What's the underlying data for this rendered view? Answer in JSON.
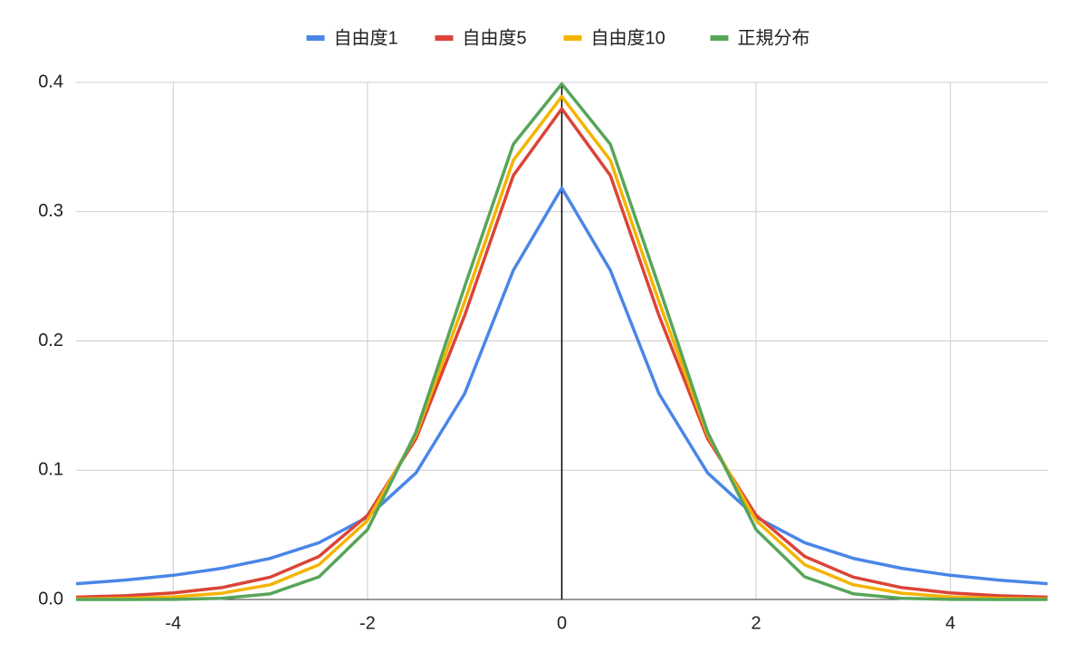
{
  "chart_data": {
    "type": "line",
    "x": [
      -5,
      -4.5,
      -4,
      -3.5,
      -3,
      -2.5,
      -2,
      -1.5,
      -1,
      -0.5,
      0,
      0.5,
      1,
      1.5,
      2,
      2.5,
      3,
      3.5,
      4,
      4.5,
      5
    ],
    "series": [
      {
        "name": "自由度1",
        "color": "#4a86e8",
        "values": [
          0.0122,
          0.015,
          0.0187,
          0.0241,
          0.0318,
          0.0439,
          0.0637,
          0.0979,
          0.1592,
          0.2546,
          0.3183,
          0.2546,
          0.1592,
          0.0979,
          0.0637,
          0.0439,
          0.0318,
          0.0241,
          0.0187,
          0.015,
          0.0122
        ]
      },
      {
        "name": "自由度5",
        "color": "#db4437",
        "values": [
          0.0018,
          0.0029,
          0.0051,
          0.0092,
          0.0173,
          0.0333,
          0.0651,
          0.1245,
          0.2197,
          0.3279,
          0.3796,
          0.3279,
          0.2197,
          0.1245,
          0.0651,
          0.0333,
          0.0173,
          0.0092,
          0.0051,
          0.0029,
          0.0018
        ]
      },
      {
        "name": "自由度10",
        "color": "#f4b400",
        "values": [
          0.0004,
          0.0009,
          0.002,
          0.0048,
          0.0114,
          0.0269,
          0.0611,
          0.1275,
          0.2304,
          0.3397,
          0.3891,
          0.3397,
          0.2304,
          0.1275,
          0.0611,
          0.0269,
          0.0114,
          0.0048,
          0.002,
          0.0009,
          0.0004
        ]
      },
      {
        "name": "正規分布",
        "color": "#57a55a",
        "values": [
          0,
          0,
          0.0001,
          0.0009,
          0.0044,
          0.0175,
          0.054,
          0.1295,
          0.242,
          0.3521,
          0.3989,
          0.3521,
          0.242,
          0.1295,
          0.054,
          0.0175,
          0.0044,
          0.0009,
          0.0001,
          0,
          0
        ]
      }
    ],
    "xlim": [
      -5,
      5
    ],
    "xticks": [
      -4,
      -2,
      0,
      2,
      4
    ],
    "ylim": [
      0,
      0.4
    ],
    "yticks": [
      {
        "value": 0,
        "label": "0.0"
      },
      0.1,
      0.2,
      0.3,
      0.4
    ],
    "grid": true,
    "legend": "top"
  }
}
